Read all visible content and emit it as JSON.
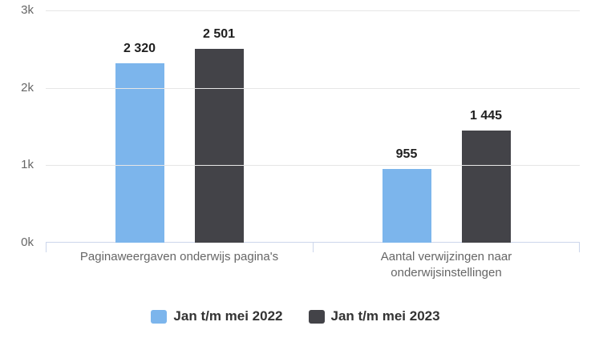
{
  "chart_data": {
    "type": "bar",
    "title": "",
    "xlabel": "",
    "ylabel": "",
    "categories": [
      "Paginaweergaven onderwijs pagina's",
      "Aantal verwijzingen naar onderwijsinstellingen"
    ],
    "series": [
      {
        "name": "Jan t/m mei 2022",
        "color": "#7cb5ec",
        "values": [
          2320,
          955
        ]
      },
      {
        "name": "Jan t/m mei 2023",
        "color": "#434348",
        "values": [
          2501,
          1445
        ]
      }
    ],
    "data_labels": [
      [
        "2 320",
        "955"
      ],
      [
        "2 501",
        "1 445"
      ]
    ],
    "ylim": [
      0,
      3000
    ],
    "ytick_labels": [
      "3k",
      "2k",
      "1k",
      "0k"
    ],
    "grid": true,
    "legend_position": "bottom"
  },
  "colors": {
    "series_2022": "#7cb5ec",
    "series_2023": "#434348",
    "gridline": "#e6e6e6",
    "axis_line": "#ccd6eb",
    "axis_label_text": "#666666",
    "data_label_text": "#1f1f1f",
    "legend_text": "#333333",
    "background": "#ffffff"
  }
}
